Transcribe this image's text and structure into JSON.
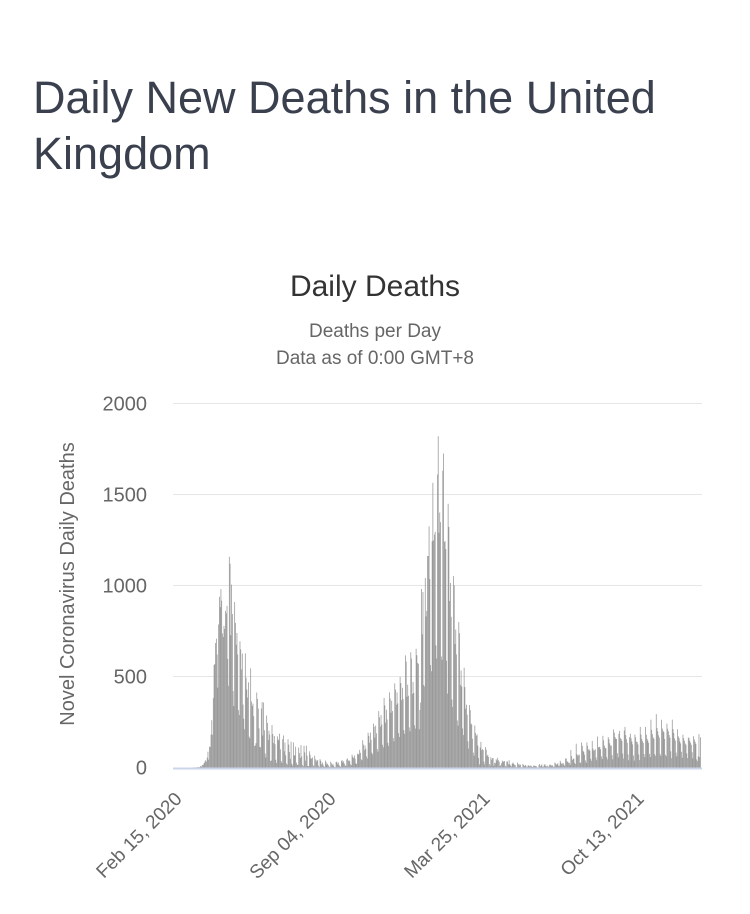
{
  "page": {
    "title": "Daily New Deaths in the United Kingdom"
  },
  "chart": {
    "title": "Daily Deaths",
    "subtitle_lines": [
      "Deaths per Day",
      "Data as of 0:00 GMT+8"
    ],
    "y_axis_title": "Novel Coronavirus Daily Deaths"
  },
  "colors": {
    "bar": "#999999",
    "gridline": "#e6e6e6",
    "axis_line": "#ccd6eb",
    "axis_label": "#666666",
    "page_title": "#3a404e",
    "chart_title": "#333333",
    "subtitle": "#666666"
  },
  "chart_data": {
    "type": "bar",
    "title": "Daily Deaths",
    "subtitle": "Deaths per Day — Data as of 0:00 GMT+8",
    "series_name": "Novel Coronavirus Daily Deaths",
    "x_start_date": "Feb 15, 2020",
    "x_tick_labels": [
      {
        "label": "Feb 15, 2020",
        "day": 0
      },
      {
        "label": "Sep 04, 2020",
        "day": 202
      },
      {
        "label": "Mar 25, 2021",
        "day": 404
      },
      {
        "label": "Oct 13, 2021",
        "day": 606
      }
    ],
    "y_ticks": [
      0,
      500,
      1000,
      1500,
      2000
    ],
    "ylim": [
      0,
      2000
    ],
    "grid": "horizontal-only",
    "legend": "none",
    "daily_values": [
      0,
      0,
      0,
      0,
      0,
      0,
      0,
      0,
      0,
      0,
      0,
      0,
      0,
      0,
      0,
      0,
      0,
      0,
      0,
      1,
      0,
      1,
      0,
      1,
      2,
      2,
      1,
      2,
      8,
      3,
      10,
      14,
      16,
      24,
      33,
      40,
      33,
      54,
      87,
      43,
      115,
      113,
      181,
      260,
      180,
      381,
      563,
      569,
      684,
      708,
      621,
      439,
      786,
      938,
      881,
      980,
      917,
      737,
      717,
      778,
      761,
      861,
      847,
      888,
      596,
      449,
      1158,
      1120,
      727,
      1005,
      843,
      420,
      338,
      909,
      795,
      674,
      739,
      621,
      315,
      288,
      693,
      649,
      539,
      626,
      346,
      268,
      210,
      627,
      494,
      428,
      384,
      468,
      170,
      160,
      545,
      363,
      338,
      351,
      282,
      118,
      121,
      134,
      412,
      377,
      324,
      215,
      113,
      111,
      324,
      359,
      176,
      357,
      204,
      77,
      55,
      286,
      245,
      151,
      202,
      181,
      36,
      38,
      233,
      184,
      135,
      173,
      128,
      43,
      25,
      171,
      154,
      149,
      186,
      100,
      36,
      25,
      155,
      176,
      89,
      137,
      67,
      22,
      16,
      155,
      126,
      85,
      48,
      142,
      21,
      11,
      138,
      66,
      67,
      114,
      27,
      15,
      14,
      110,
      79,
      53,
      123,
      61,
      14,
      7,
      119,
      83,
      38,
      120,
      65,
      8,
      8,
      89,
      70,
      50,
      49,
      55,
      12,
      6,
      65,
      45,
      33,
      41,
      39,
      10,
      3,
      46,
      37,
      18,
      27,
      16,
      6,
      4,
      38,
      29,
      16,
      21,
      12,
      5,
      2,
      32,
      23,
      14,
      20,
      10,
      3,
      2,
      30,
      32,
      21,
      27,
      14,
      6,
      5,
      37,
      40,
      27,
      34,
      21,
      11,
      9,
      44,
      50,
      37,
      40,
      34,
      17,
      13,
      71,
      59,
      52,
      66,
      49,
      23,
      19,
      76,
      70,
      76,
      97,
      81,
      45,
      40,
      150,
      126,
      95,
      121,
      103,
      61,
      50,
      191,
      174,
      136,
      192,
      152,
      81,
      72,
      241,
      224,
      164,
      230,
      188,
      102,
      87,
      310,
      276,
      224,
      288,
      236,
      125,
      111,
      382,
      341,
      246,
      317,
      264,
      136,
      119,
      413,
      379,
      301,
      367,
      310,
      162,
      144,
      462,
      428,
      345,
      413,
      352,
      189,
      168,
      498,
      464,
      370,
      438,
      376,
      205,
      185,
      616,
      582,
      389,
      455,
      394,
      220,
      199,
      633,
      598,
      404,
      470,
      410,
      232,
      214,
      652,
      617,
      574,
      570,
      210,
      316,
      357,
      981,
      732,
      964,
      454,
      445,
      1041,
      830,
      860,
      1162,
      1162,
      1325,
      1035,
      563,
      529,
      1243,
      1564,
      1248,
      1280,
      1295,
      671,
      599,
      1610,
      1820,
      1290,
      1401,
      1348,
      610,
      592,
      1631,
      1725,
      1239,
      1245,
      1200,
      587,
      406,
      1449,
      1322,
      915,
      1014,
      828,
      373,
      333,
      1052,
      1001,
      678,
      758,
      621,
      258,
      230,
      799,
      738,
      454,
      533,
      445,
      215,
      178,
      548,
      442,
      323,
      345,
      290,
      144,
      104,
      343,
      315,
      242,
      236,
      158,
      82,
      65,
      231,
      190,
      175,
      181,
      121,
      52,
      17,
      110,
      141,
      95,
      101,
      96,
      33,
      17,
      112,
      98,
      63,
      70,
      58,
      19,
      10,
      56,
      43,
      51,
      52,
      10,
      26,
      23,
      45,
      38,
      53,
      40,
      32,
      7,
      13,
      23,
      38,
      30,
      34,
      35,
      10,
      4,
      33,
      33,
      18,
      40,
      17,
      11,
      6,
      20,
      27,
      22,
      15,
      14,
      1,
      4,
      27,
      20,
      11,
      17,
      15,
      2,
      1,
      20,
      14,
      9,
      11,
      13,
      2,
      5,
      12,
      11,
      7,
      10,
      9,
      4,
      3,
      10,
      9,
      10,
      7,
      6,
      1,
      0,
      12,
      19,
      7,
      11,
      17,
      4,
      5,
      13,
      19,
      9,
      7,
      11,
      3,
      6,
      15,
      16,
      11,
      11,
      12,
      5,
      3,
      27,
      22,
      16,
      18,
      23,
      8,
      11,
      37,
      27,
      18,
      22,
      24,
      15,
      9,
      50,
      49,
      34,
      31,
      26,
      26,
      15,
      96,
      63,
      41,
      49,
      48,
      25,
      19,
      131,
      73,
      65,
      68,
      71,
      24,
      28,
      138,
      119,
      92,
      86,
      71,
      39,
      26,
      138,
      119,
      98,
      100,
      92,
      48,
      37,
      146,
      104,
      93,
      95,
      100,
      55,
      40,
      170,
      111,
      114,
      111,
      100,
      61,
      46,
      174,
      149,
      120,
      108,
      105,
      58,
      45,
      167,
      155,
      133,
      121,
      120,
      68,
      45,
      209,
      191,
      167,
      158,
      156,
      78,
      56,
      185,
      201,
      161,
      157,
      146,
      77,
      49,
      203,
      223,
      178,
      155,
      136,
      72,
      40,
      167,
      186,
      161,
      143,
      127,
      66,
      38,
      181,
      166,
      142,
      140,
      127,
      72,
      41,
      223,
      181,
      157,
      145,
      135,
      74,
      57,
      223,
      180,
      158,
      148,
      135,
      75,
      58,
      263,
      207,
      183,
      165,
      158,
      73,
      64,
      293,
      217,
      199,
      177,
      164,
      75,
      63,
      262,
      214,
      201,
      194,
      157,
      70,
      62,
      241,
      213,
      199,
      178,
      164,
      89,
      51,
      263,
      211,
      190,
      160,
      148,
      82,
      61,
      210,
      171,
      161,
      143,
      132,
      86,
      54,
      180,
      161,
      147,
      132,
      125,
      78,
      52,
      165,
      161,
      146,
      136,
      125,
      84,
      50,
      172,
      154,
      141,
      130,
      44,
      35,
      61,
      183,
      57,
      166
    ]
  }
}
